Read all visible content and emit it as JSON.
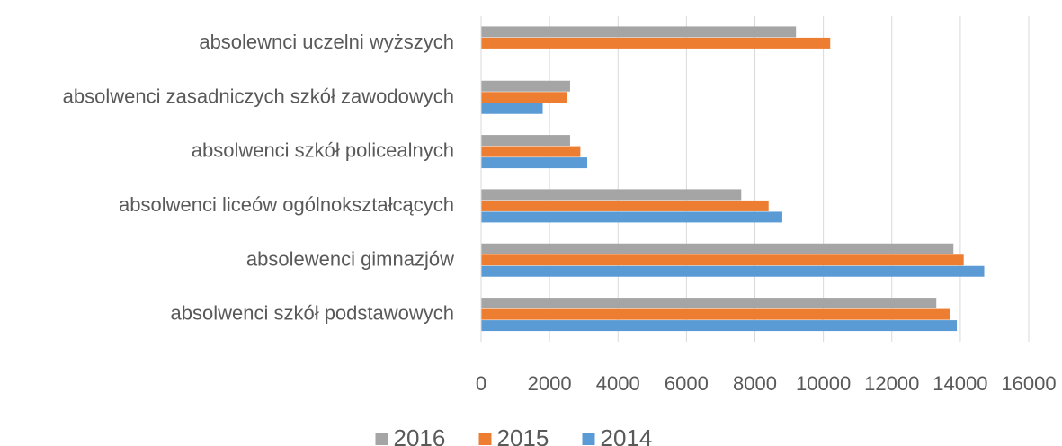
{
  "chart_data": {
    "type": "barh",
    "categories": [
      "absolewnci uczelni wyższych",
      "absolwenci zasadniczych szkół zawodowych",
      "absolwenci szkół policealnych",
      "absolwenci liceów ogólnokształcących",
      "absolewenci gimnazjów",
      "absolwenci szkół podstawowych"
    ],
    "series": [
      {
        "name": "2016",
        "color": "#a5a5a5",
        "values": [
          9200,
          2600,
          2600,
          7600,
          13800,
          13300
        ]
      },
      {
        "name": "2015",
        "color": "#ed7d31",
        "values": [
          10200,
          2500,
          2900,
          8400,
          14100,
          13700
        ]
      },
      {
        "name": "2014",
        "color": "#5b9bd5",
        "values": [
          null,
          1800,
          3100,
          8800,
          14700,
          13900
        ]
      }
    ],
    "xlim": [
      0,
      16000
    ],
    "xticks": [
      0,
      2000,
      4000,
      6000,
      8000,
      10000,
      12000,
      14000,
      16000
    ],
    "grid": true
  }
}
